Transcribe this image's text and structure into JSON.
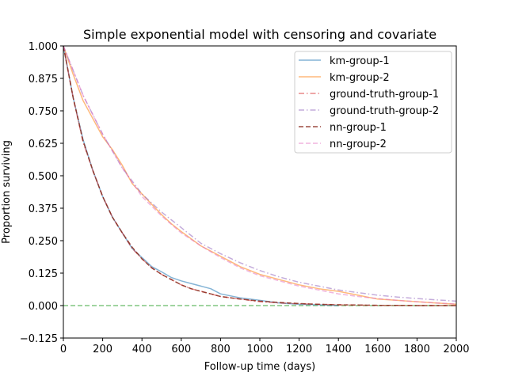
{
  "chart_data": {
    "type": "line",
    "title": "Simple exponential model with censoring and covariate",
    "xlabel": "Follow-up time (days)",
    "ylabel": "Proportion surviving",
    "xlim": [
      0,
      2000
    ],
    "ylim": [
      -0.125,
      1.0
    ],
    "x_ticks": [
      0,
      200,
      400,
      600,
      800,
      1000,
      1200,
      1400,
      1600,
      1800,
      2000
    ],
    "x_tick_labels": [
      "0",
      "200",
      "400",
      "600",
      "800",
      "1000",
      "1200",
      "1400",
      "1600",
      "1800",
      "2000"
    ],
    "y_ticks": [
      -0.125,
      0.0,
      0.125,
      0.25,
      0.375,
      0.5,
      0.625,
      0.75,
      0.875,
      1.0
    ],
    "y_tick_labels": [
      "−0.125",
      "0.000",
      "0.125",
      "0.250",
      "0.375",
      "0.500",
      "0.625",
      "0.750",
      "0.875",
      "1.000"
    ],
    "grid": false,
    "legend_position": "top-right",
    "reference_line": {
      "y": 0.0,
      "color": "#2ca02c",
      "style": "dashed"
    },
    "series": [
      {
        "name": "km-group-1",
        "color": "#1f77b4",
        "style": "solid",
        "x": [
          0,
          50,
          100,
          150,
          200,
          250,
          300,
          350,
          400,
          450,
          500,
          550,
          600,
          650,
          700,
          750,
          800,
          900,
          1000,
          1100,
          1200,
          1300,
          1400
        ],
        "y": [
          1.0,
          0.8,
          0.64,
          0.52,
          0.42,
          0.34,
          0.28,
          0.22,
          0.185,
          0.15,
          0.13,
          0.108,
          0.095,
          0.085,
          0.075,
          0.065,
          0.045,
          0.03,
          0.02,
          0.01,
          0.005,
          0.003,
          0.0
        ]
      },
      {
        "name": "km-group-2",
        "color": "#ff7f0e",
        "style": "solid",
        "x": [
          0,
          50,
          100,
          150,
          200,
          220,
          250,
          300,
          350,
          400,
          450,
          500,
          550,
          600,
          700,
          800,
          900,
          1000,
          1100,
          1200,
          1300,
          1400,
          1500,
          1600,
          1700,
          1800,
          1900,
          2000
        ],
        "y": [
          1.0,
          0.89,
          0.79,
          0.72,
          0.65,
          0.63,
          0.6,
          0.54,
          0.47,
          0.43,
          0.39,
          0.35,
          0.315,
          0.285,
          0.23,
          0.19,
          0.15,
          0.12,
          0.1,
          0.08,
          0.065,
          0.055,
          0.04,
          0.025,
          0.02,
          0.015,
          0.01,
          0.005
        ]
      },
      {
        "name": "ground-truth-group-1",
        "color": "#d62728",
        "style": "dashdot",
        "x": [
          0,
          50,
          100,
          150,
          200,
          250,
          300,
          350,
          400,
          450,
          500,
          550,
          600,
          650,
          700,
          750,
          800,
          900,
          1000,
          1100,
          1200,
          1300,
          1400,
          1500,
          1600,
          1700,
          1800,
          1900,
          2000
        ],
        "y": [
          1.0,
          0.8,
          0.63,
          0.52,
          0.42,
          0.34,
          0.28,
          0.22,
          0.18,
          0.145,
          0.12,
          0.1,
          0.08,
          0.065,
          0.055,
          0.045,
          0.035,
          0.025,
          0.015,
          0.01,
          0.007,
          0.005,
          0.003,
          0.002,
          0.001,
          0.001,
          0.0,
          0.0,
          0.0
        ]
      },
      {
        "name": "ground-truth-group-2",
        "color": "#9467bd",
        "style": "dashdot",
        "x": [
          0,
          100,
          200,
          300,
          400,
          500,
          600,
          700,
          800,
          900,
          1000,
          1100,
          1200,
          1300,
          1400,
          1500,
          1600,
          1700,
          1800,
          1900,
          2000
        ],
        "y": [
          1.0,
          0.81,
          0.66,
          0.53,
          0.43,
          0.36,
          0.3,
          0.24,
          0.2,
          0.165,
          0.135,
          0.11,
          0.09,
          0.075,
          0.06,
          0.05,
          0.04,
          0.033,
          0.027,
          0.022,
          0.017
        ]
      },
      {
        "name": "nn-group-1",
        "color": "#8c2d1e",
        "style": "dashed",
        "x": [
          0,
          50,
          100,
          150,
          200,
          250,
          300,
          350,
          400,
          450,
          500,
          550,
          600,
          650,
          700,
          750,
          800,
          900,
          1000,
          1100,
          1200,
          1300,
          1400,
          1500,
          1600,
          1700,
          1800,
          1900,
          2000
        ],
        "y": [
          1.0,
          0.8,
          0.635,
          0.52,
          0.42,
          0.34,
          0.28,
          0.225,
          0.18,
          0.145,
          0.12,
          0.1,
          0.08,
          0.065,
          0.055,
          0.045,
          0.035,
          0.025,
          0.017,
          0.012,
          0.008,
          0.005,
          0.003,
          0.002,
          0.001,
          0.001,
          0.0,
          0.0,
          0.0
        ]
      },
      {
        "name": "nn-group-2",
        "color": "#e377c2",
        "style": "dashed",
        "x": [
          0,
          100,
          200,
          300,
          400,
          500,
          600,
          700,
          800,
          900,
          1000,
          1100,
          1200,
          1300,
          1400,
          1500,
          1600,
          1700,
          1800,
          1900,
          2000
        ],
        "y": [
          1.0,
          0.81,
          0.66,
          0.53,
          0.42,
          0.345,
          0.28,
          0.23,
          0.185,
          0.145,
          0.115,
          0.095,
          0.075,
          0.06,
          0.045,
          0.035,
          0.027,
          0.02,
          0.015,
          0.01,
          0.006
        ]
      }
    ]
  }
}
